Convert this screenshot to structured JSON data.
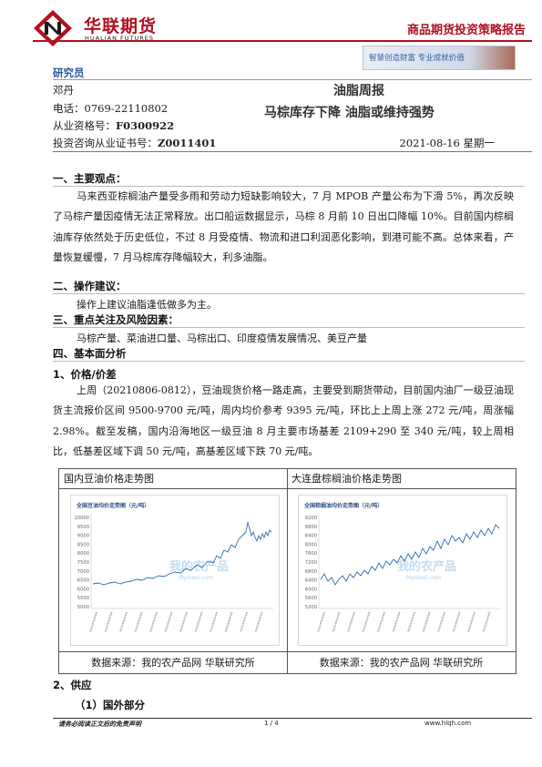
{
  "header": {
    "company_cn": "华联期货",
    "company_en": "HUALIAN FUTURES",
    "report_type": "商品期货投资策略报告",
    "banner_text": "智慧创造财富  专业成就价值",
    "brand_color": "#b01020"
  },
  "author": {
    "label": "研究员",
    "name": "邓丹",
    "phone": "电话：0769-22110802",
    "qualification_prefix": "从业资格号：",
    "qualification_no": "F0300922",
    "consult_prefix": "投资咨询从业证书号：",
    "consult_no": "Z0011401"
  },
  "title": {
    "weekly": "油脂周报",
    "headline": "马棕库存下降  油脂或维持强势",
    "date": "2021-08-16 星期一"
  },
  "sections": {
    "s1_title": "一、主要观点：",
    "s1_body": "马来西亚棕榈油产量受多雨和劳动力短缺影响较大，7 月 MPOB 产量公布为下滑 5%，再次反映了马棕产量因疫情无法正常释放。出口船运数据显示，马棕 8 月前 10 日出口降幅 10%。目前国内棕榈油库存依然处于历史低位，不过 8 月受疫情、物流和进口利润恶化影响，到港可能不高。总体来看，产量恢复缓慢，7 月马棕库存降幅较大，利多油脂。",
    "s2_title": "二、操作建议：",
    "s2_body": "操作上建议油脂逢低做多为主。",
    "s3_title": "三、重点关注及风险因素：",
    "s3_body": "马棕产量、菜油进口量、马棕出口、印度疫情发展情况、美豆产量",
    "s4_title": "四、基本面分析",
    "s4_1_title": "1、价格/价差",
    "s4_1_body": "上周（20210806-0812），豆油现货价格一路走高，主要受到期货带动，目前国内油厂一级豆油现货主流报价区间 9500-9700 元/吨，周内均价参考 9395 元/吨，环比上上周上涨 272 元/吨，周涨幅 2.98%。截至发稿，国内沿海地区一级豆油 8 月主要市场基差 2109+290 至 340 元/吨，较上周相比，低基差区域下调 50 元/吨，高基差区域下跌 70 元/吨。",
    "s4_2_title": "2、供应",
    "s4_2_1_title": "（1）国外部分"
  },
  "charts": {
    "left_title": "国内豆油价格走势图",
    "right_title": "大连盘棕榈油价格走势图",
    "left_source": "数据来源：我的农产品网  华联研究所",
    "right_source": "数据来源：我的农产品网  华联研究所",
    "left_inner_title": "全国豆油均价走势图（元/吨）",
    "right_inner_title": "全国棕榈油均价走势图（元/吨）",
    "watermark": "我的农产品",
    "watermark_sub": "Mysteel.com",
    "left_yticks": [
      "10000",
      "9500",
      "9000",
      "8500",
      "8000",
      "7500",
      "7000",
      "6500",
      "6000",
      "5500",
      "5000"
    ],
    "right_yticks": [
      "9200",
      "8800",
      "8400",
      "8000",
      "7600",
      "7200",
      "6800",
      "6400",
      "6000",
      "5600",
      "5200"
    ],
    "line_color": "#2e6db4"
  },
  "footer": {
    "disclaimer": "请务必阅读正文后的免责声明",
    "page": "1 / 4",
    "website": "www.hlqh.com"
  }
}
